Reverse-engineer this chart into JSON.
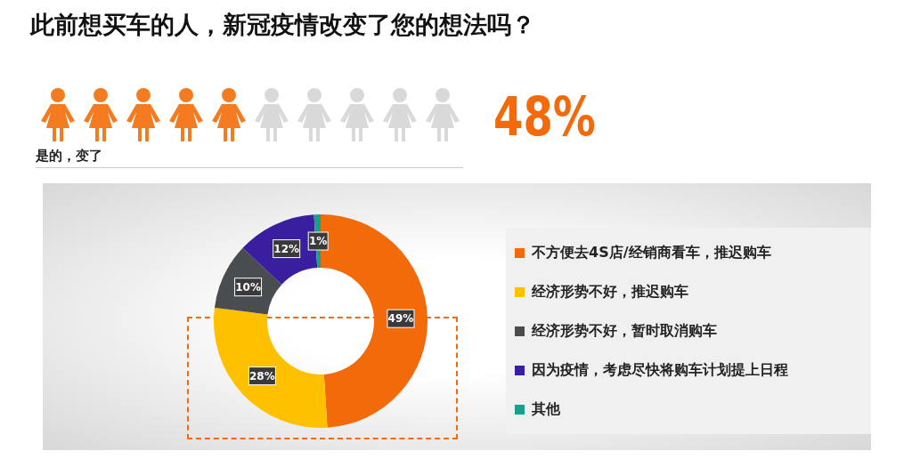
{
  "chart_data": {
    "type": "donut",
    "title": "此前想买车的人，新冠疫情改变了您的想法吗？",
    "categories": [
      "不方便去4S店/经销商看车，推迟购车",
      "经济形势不好，推迟购车",
      "经济形势不好，暂时取消购车",
      "因为疫情，考虑尽快将购车计划提上日程",
      "其他"
    ],
    "values": [
      49,
      28,
      10,
      12,
      1
    ],
    "colors": [
      "#f26a0a",
      "#ffc000",
      "#4a4d50",
      "#3a1ea0",
      "#17a08c"
    ],
    "value_labels": [
      "49%",
      "28%",
      "10%",
      "12%",
      "1%"
    ],
    "legend": "right",
    "annotations": [
      "48%",
      "是的，变了"
    ]
  }
}
